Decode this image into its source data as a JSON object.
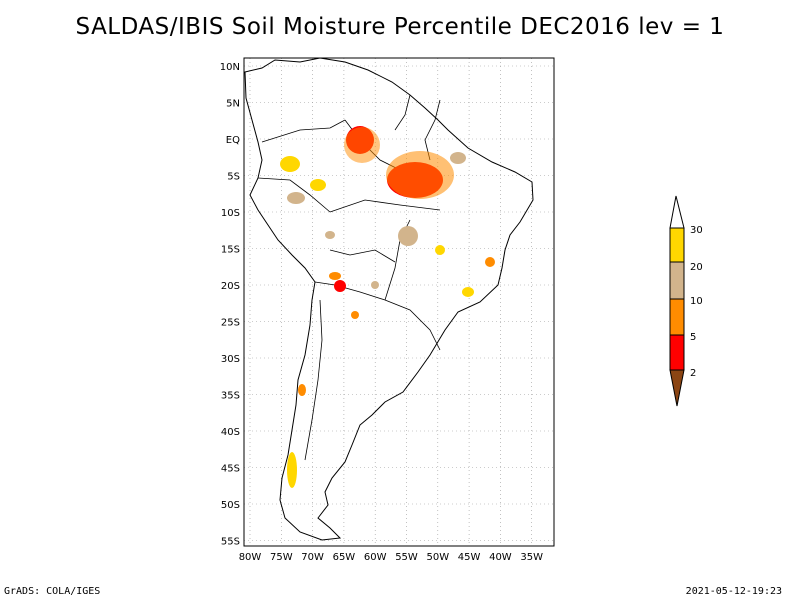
{
  "title": "SALDAS/IBIS Soil Moisture Percentile DEC2016 lev = 1",
  "footer": {
    "left": "GrADS: COLA/IGES",
    "right": "2021-05-12-19:23"
  },
  "map": {
    "lon_range": [
      -81,
      -32
    ],
    "lat_range": [
      -56,
      12
    ],
    "lat_labels": [
      "10N",
      "5N",
      "EQ",
      "5S",
      "10S",
      "15S",
      "20S",
      "25S",
      "30S",
      "35S",
      "40S",
      "45S",
      "50S",
      "55S"
    ],
    "lon_labels": [
      "80W",
      "75W",
      "70W",
      "65W",
      "60W",
      "55W",
      "50W",
      "45W",
      "40W",
      "35W"
    ]
  },
  "legend": {
    "levels": [
      "2",
      "5",
      "10",
      "20",
      "30"
    ],
    "colors": [
      "#8b4513",
      "#ff0000",
      "#ff8c00",
      "#d2b48c",
      "#ffd700",
      "#ffffff"
    ]
  }
}
